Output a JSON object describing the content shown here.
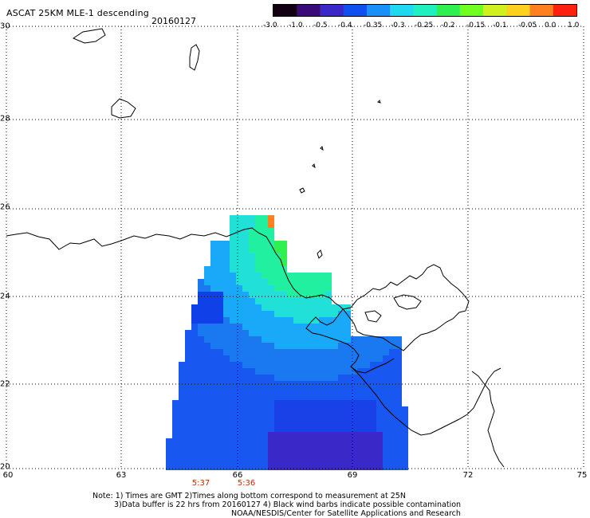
{
  "header": {
    "title": "ASCAT 25KM MLE-1 descending",
    "date": "20160127"
  },
  "colorbar": {
    "labels": [
      "-3.0",
      "-1.0",
      "-0.5",
      "-0.4",
      "-0.35",
      "-0.3",
      "-0.25",
      "-0.2",
      "-0.15",
      "-0.1",
      "-0.05",
      "0.0",
      "1.0"
    ],
    "colors": [
      "#120012",
      "#3a0a78",
      "#3a28c8",
      "#1050f0",
      "#1a90f8",
      "#20d8f0",
      "#20f0c0",
      "#30f050",
      "#70ff20",
      "#d0f020",
      "#ffd020",
      "#ff8020",
      "#ff2010"
    ]
  },
  "axes": {
    "y_ticks": [
      "30",
      "28",
      "26",
      "24",
      "22",
      "20"
    ],
    "x_ticks": [
      "60",
      "63",
      "66",
      "69",
      "72",
      "75"
    ]
  },
  "pass_times": [
    "5:37",
    "5:36"
  ],
  "notes": {
    "line1": "Note: 1) Times are GMT 2)Times along bottom correspond to measurement at 25N",
    "line2": "3)Data buffer is 22 hrs from 20160127 4) Black wind barbs indicate possible contamination",
    "line3": "NOAA/NESDIS/Center for Satellite Applications and Research"
  },
  "colors": {
    "accent_time": "#b03010",
    "grid": "#000000"
  }
}
